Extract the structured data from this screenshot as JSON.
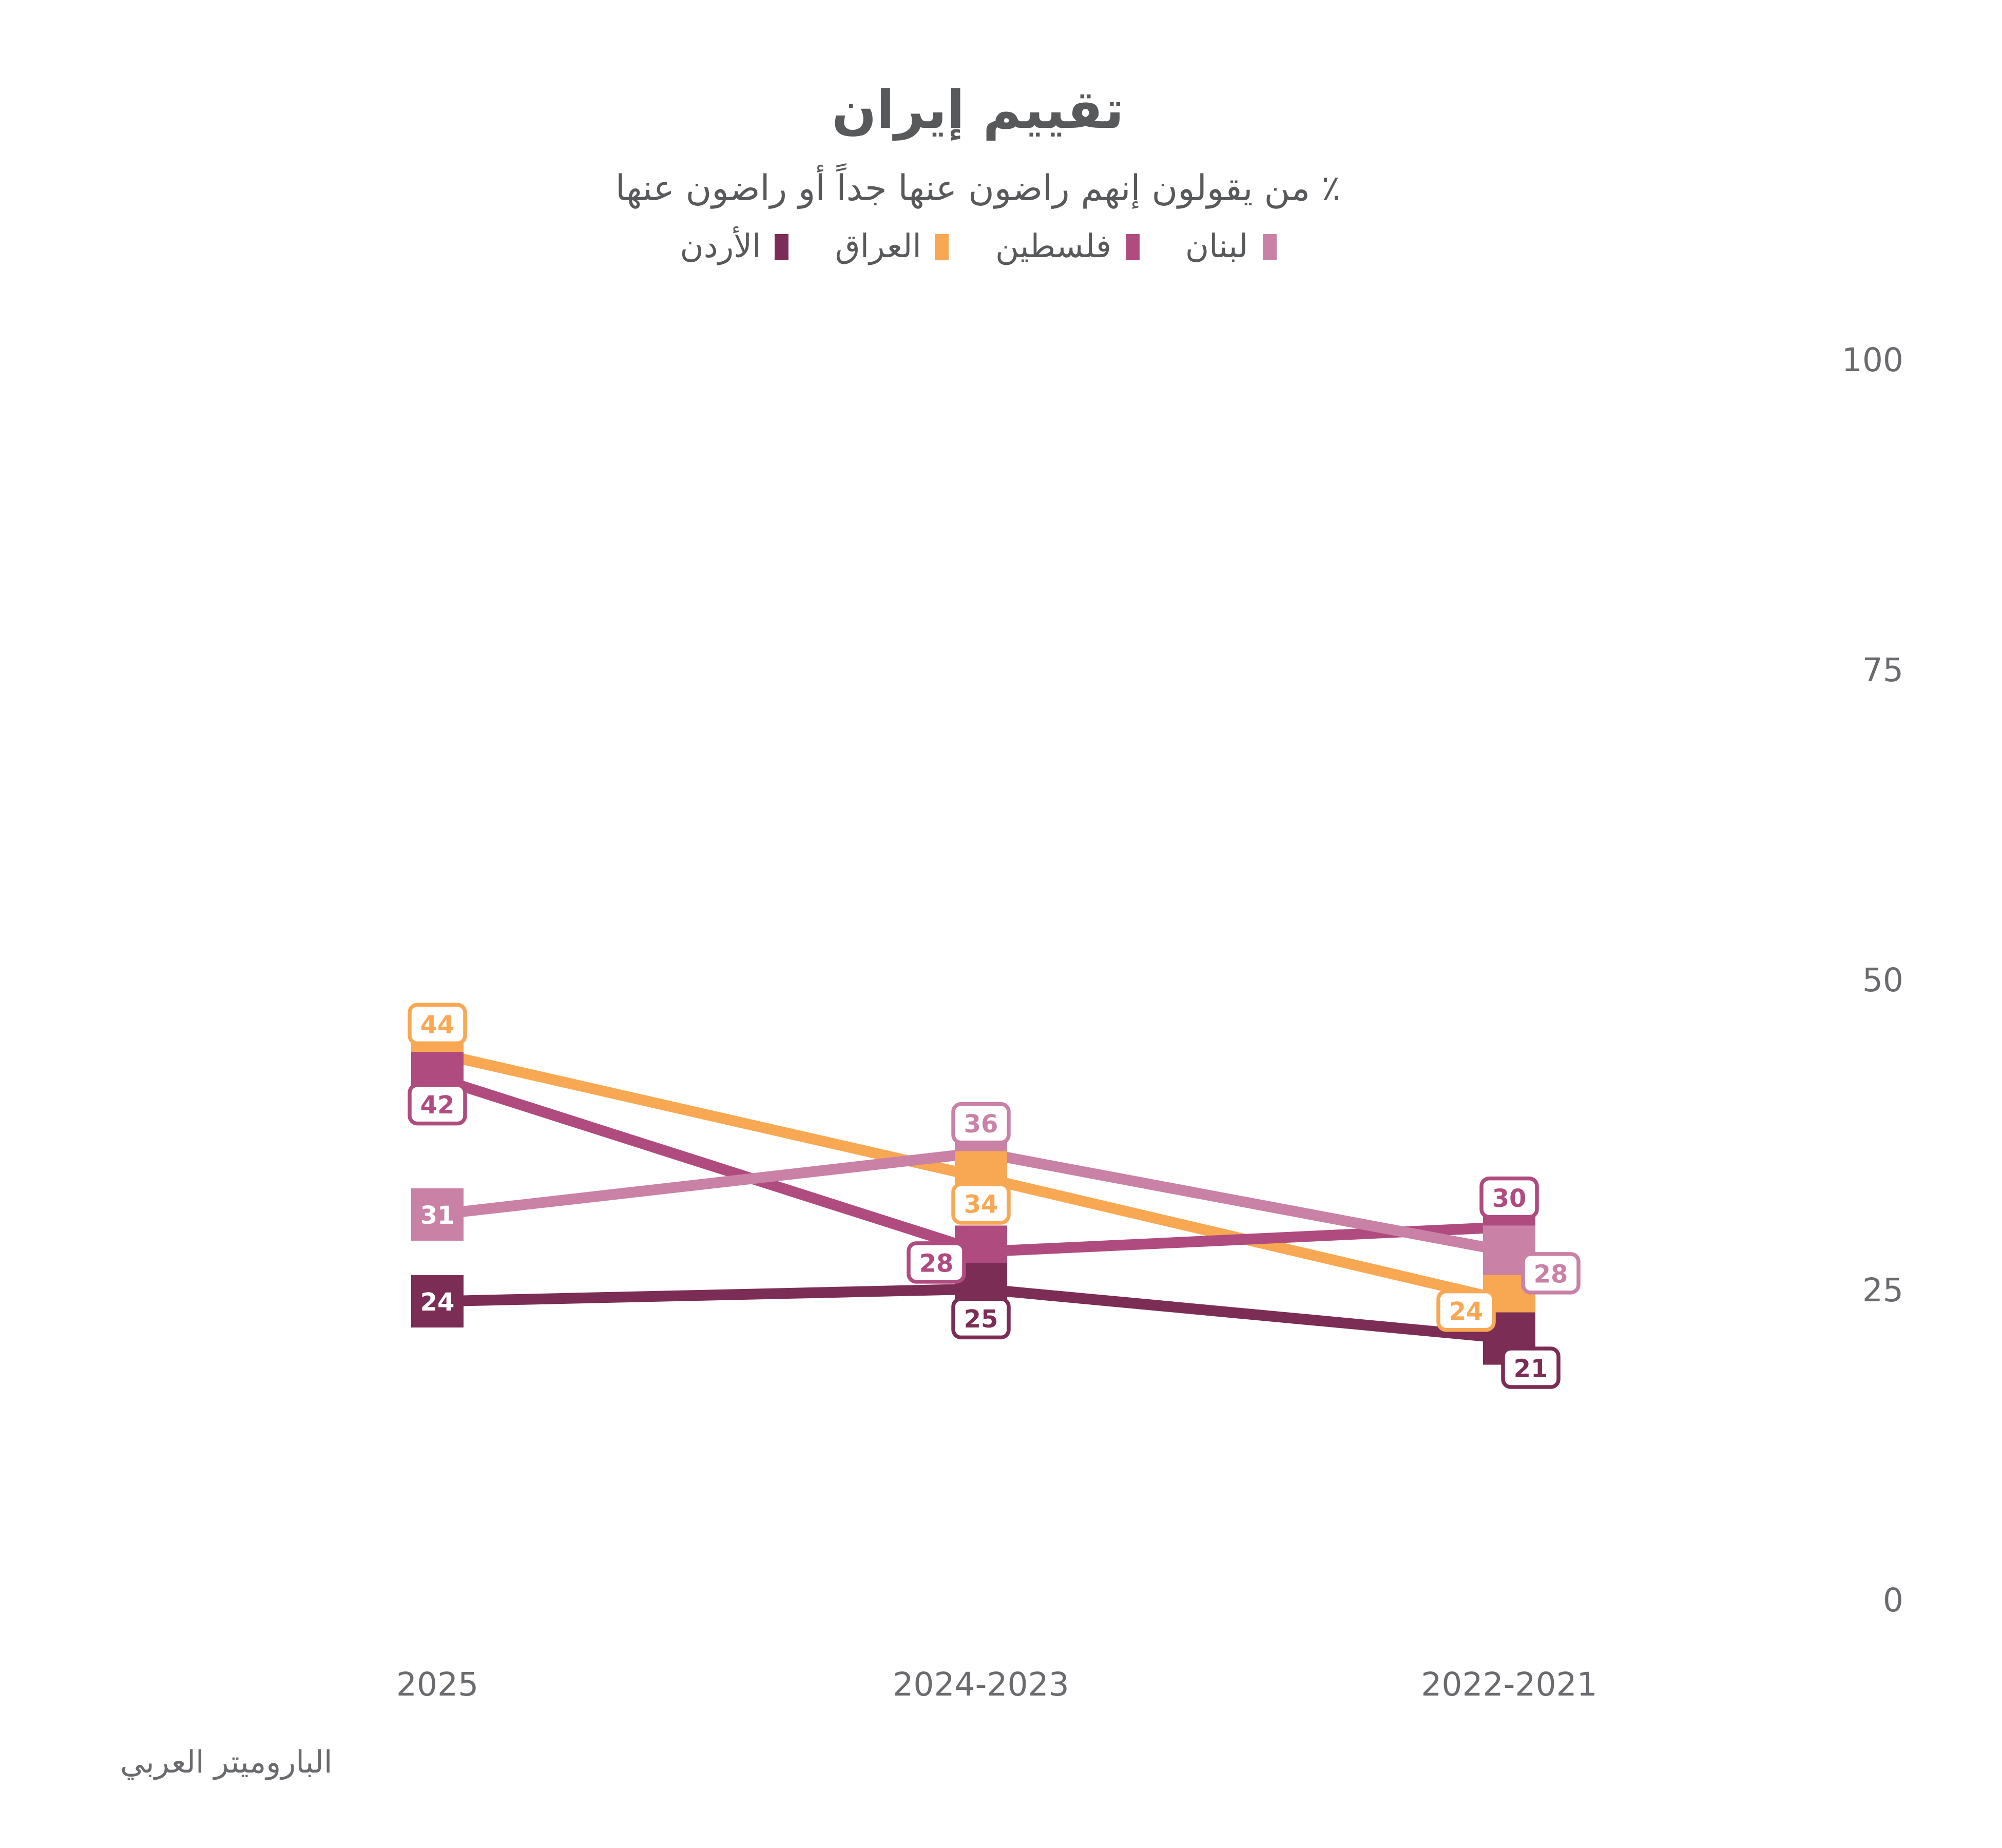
{
  "title": "تقييم إيران",
  "subtitle": "٪ من يقولون إنهم راضون عنها جداً أو راضون عنها",
  "source": "الباروميتر العربي",
  "text_colors": {
    "heading": "#58595b",
    "axis": "#6a6b6e"
  },
  "chart_data": {
    "type": "line",
    "categories": [
      "2025",
      "2024-2023",
      "2022-2021"
    ],
    "series": [
      {
        "name": "لبنان",
        "color": "#CA81A6",
        "values": [
          31,
          36,
          28
        ]
      },
      {
        "name": "فلسطين",
        "color": "#B04B80",
        "values": [
          42,
          28,
          30
        ]
      },
      {
        "name": "العراق",
        "color": "#F8A853",
        "values": [
          44,
          34,
          24
        ]
      },
      {
        "name": "الأردن",
        "color": "#7B2D55",
        "values": [
          24,
          25,
          21
        ]
      }
    ],
    "title": "تقييم إيران",
    "xlabel": "",
    "ylabel": "",
    "ylim": [
      0,
      100
    ],
    "yticks": [
      0,
      25,
      50,
      75,
      100
    ],
    "y_axis_side": "right",
    "grid": false,
    "legend_position": "top",
    "value_labels": true,
    "direction": "rtl"
  }
}
